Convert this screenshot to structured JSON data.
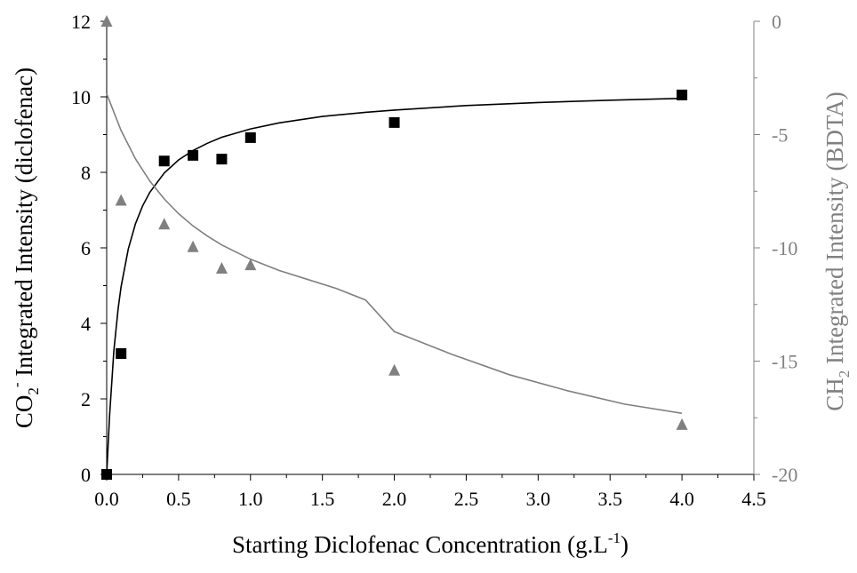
{
  "chart_data": {
    "type": "scatter",
    "title": "",
    "xlabel": {
      "main": "Starting Diclofenac Concentration (g.L",
      "sup": "-1",
      "end": ")"
    },
    "ylabel_left": {
      "pre": "CO",
      "sub": "2",
      "sup": "-",
      "post": " Integrated Intensity (diclofenac)"
    },
    "ylabel_right": {
      "pre": "CH",
      "sub": "2",
      "post": " Integrated Intensity (BDTA)"
    },
    "xlim": [
      0,
      4.5
    ],
    "ylim_left": [
      0,
      12
    ],
    "ylim_right": [
      -20,
      0
    ],
    "x_ticks": [
      "0.0",
      "0.5",
      "1.0",
      "1.5",
      "2.0",
      "2.5",
      "3.0",
      "3.5",
      "4.0",
      "4.5"
    ],
    "y_left_ticks": [
      "0",
      "2",
      "4",
      "6",
      "8",
      "10",
      "12"
    ],
    "y_right_ticks": [
      "0",
      "-5",
      "-10",
      "-15",
      "-20"
    ],
    "colors": {
      "left_series": "#000000",
      "right_series": "#808080",
      "axis": "#000000",
      "right_axis": "#808080"
    },
    "series": [
      {
        "marker": "square",
        "axis": "left",
        "x": [
          0,
          0.1,
          0.4,
          0.6,
          0.8,
          1.0,
          2.0,
          4.0
        ],
        "y": [
          0,
          3.2,
          8.3,
          8.45,
          8.35,
          8.92,
          9.32,
          10.05
        ],
        "fit": {
          "x": [
            0,
            0.02,
            0.05,
            0.08,
            0.1,
            0.15,
            0.2,
            0.25,
            0.3,
            0.4,
            0.5,
            0.6,
            0.7,
            0.8,
            1.0,
            1.2,
            1.5,
            1.8,
            2.0,
            2.5,
            3.0,
            3.5,
            4.0
          ],
          "y": [
            0,
            1.53,
            3.28,
            4.39,
            4.97,
            5.97,
            6.64,
            7.11,
            7.47,
            7.98,
            8.33,
            8.58,
            8.77,
            8.93,
            9.15,
            9.31,
            9.48,
            9.59,
            9.65,
            9.77,
            9.85,
            9.91,
            9.96
          ]
        }
      },
      {
        "marker": "triangle",
        "axis": "right",
        "x": [
          0,
          0.1,
          0.4,
          0.6,
          0.8,
          1.0,
          2.0,
          4.0
        ],
        "y": [
          0,
          -7.9,
          -8.95,
          -9.95,
          -10.9,
          -10.75,
          -15.4,
          -17.8
        ],
        "fit": {
          "x": [
            0,
            0.1,
            0.2,
            0.3,
            0.4,
            0.5,
            0.6,
            0.7,
            0.8,
            1.0,
            1.2,
            1.4,
            1.6,
            1.8,
            2.0,
            2.4,
            2.8,
            3.2,
            3.6,
            4.0
          ],
          "y": [
            -3.2,
            -4.82,
            -6.07,
            -7.05,
            -7.84,
            -8.49,
            -9.03,
            -9.48,
            -9.87,
            -10.5,
            -11.0,
            -11.4,
            -11.8,
            -12.3,
            -13.7,
            -14.7,
            -15.6,
            -16.3,
            -16.9,
            -17.3
          ]
        }
      }
    ]
  }
}
